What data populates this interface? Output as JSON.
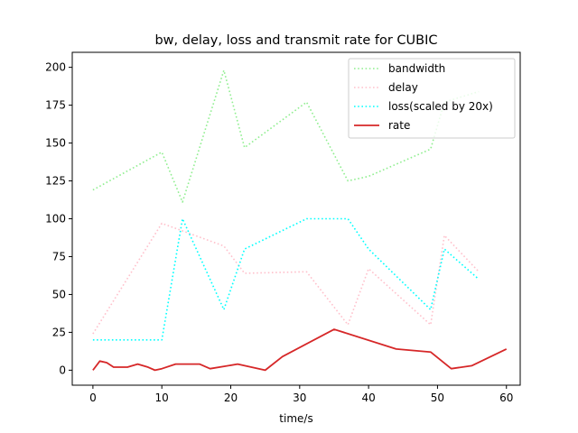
{
  "chart_data": {
    "type": "line",
    "title": "bw, delay, loss and transmit rate for CUBIC",
    "xlabel": "time/s",
    "ylabel": "",
    "xlim": [
      -3,
      62
    ],
    "ylim": [
      -9.9,
      209.9
    ],
    "xticks": [
      0,
      10,
      20,
      30,
      40,
      50,
      60
    ],
    "yticks": [
      0,
      25,
      50,
      75,
      100,
      125,
      150,
      175,
      200
    ],
    "grid": false,
    "legend_position": "top-right",
    "series": [
      {
        "name": "bandwidth",
        "color": "#90ee90",
        "style": "dotted",
        "x": [
          0,
          10,
          13,
          19,
          22,
          31,
          37,
          40,
          49,
          51,
          56
        ],
        "y": [
          119,
          144,
          111,
          198,
          147,
          177,
          125,
          128,
          146,
          177,
          184
        ]
      },
      {
        "name": "delay",
        "color": "#ffc0cb",
        "style": "dotted",
        "x": [
          0,
          10,
          19,
          22,
          31,
          37,
          40,
          49,
          51,
          56
        ],
        "y": [
          24,
          97,
          82,
          64,
          65,
          30,
          67,
          30,
          89,
          65
        ]
      },
      {
        "name": "loss(scaled by 20x)",
        "color": "#00ffff",
        "style": "dotted",
        "x": [
          0,
          10,
          13,
          19,
          22,
          31,
          37,
          40,
          49,
          51,
          56
        ],
        "y": [
          20,
          20,
          100,
          40,
          80,
          100,
          100,
          80,
          40,
          80,
          60
        ]
      },
      {
        "name": "rate",
        "color": "#d62728",
        "style": "solid",
        "x": [
          0,
          1,
          2,
          3,
          5,
          6.5,
          8,
          9,
          10,
          12,
          15.5,
          17,
          21,
          25,
          27.5,
          35,
          44,
          49,
          52,
          55,
          60
        ],
        "y": [
          0,
          6,
          5,
          2,
          2,
          4,
          2,
          0,
          1,
          4,
          4,
          1,
          4,
          0,
          9,
          27,
          14,
          12,
          1,
          3,
          14
        ]
      }
    ]
  }
}
